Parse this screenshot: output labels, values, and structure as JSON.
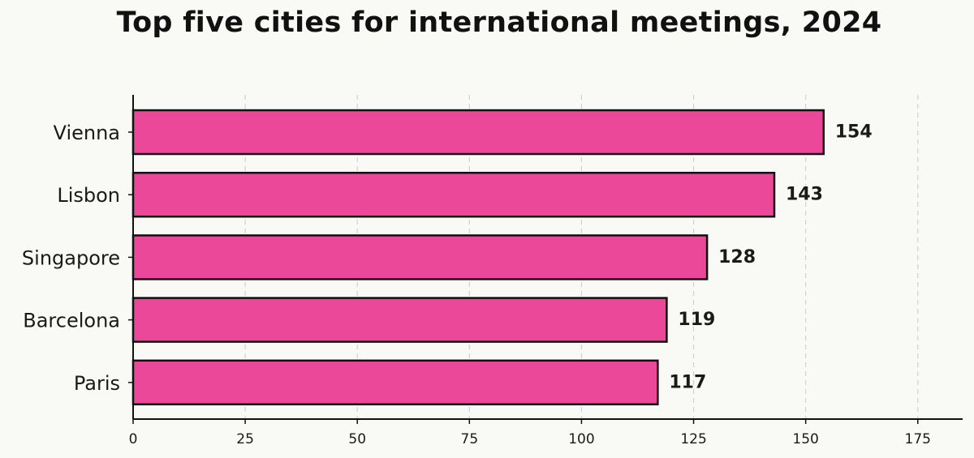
{
  "chart_data": {
    "type": "bar",
    "orientation": "horizontal",
    "title": "Top five cities for international meetings, 2024",
    "xlabel": "",
    "ylabel": "",
    "categories": [
      "Vienna",
      "Lisbon",
      "Singapore",
      "Barcelona",
      "Paris"
    ],
    "values": [
      154,
      143,
      128,
      119,
      117
    ],
    "xlim": [
      0,
      185
    ],
    "xticks": [
      0,
      25,
      50,
      75,
      100,
      125,
      150,
      175
    ],
    "grid": "vertical dashed",
    "legend": "none",
    "bar_color": "#ec4899",
    "bar_edge_color": "#111111",
    "data_labels": true
  }
}
